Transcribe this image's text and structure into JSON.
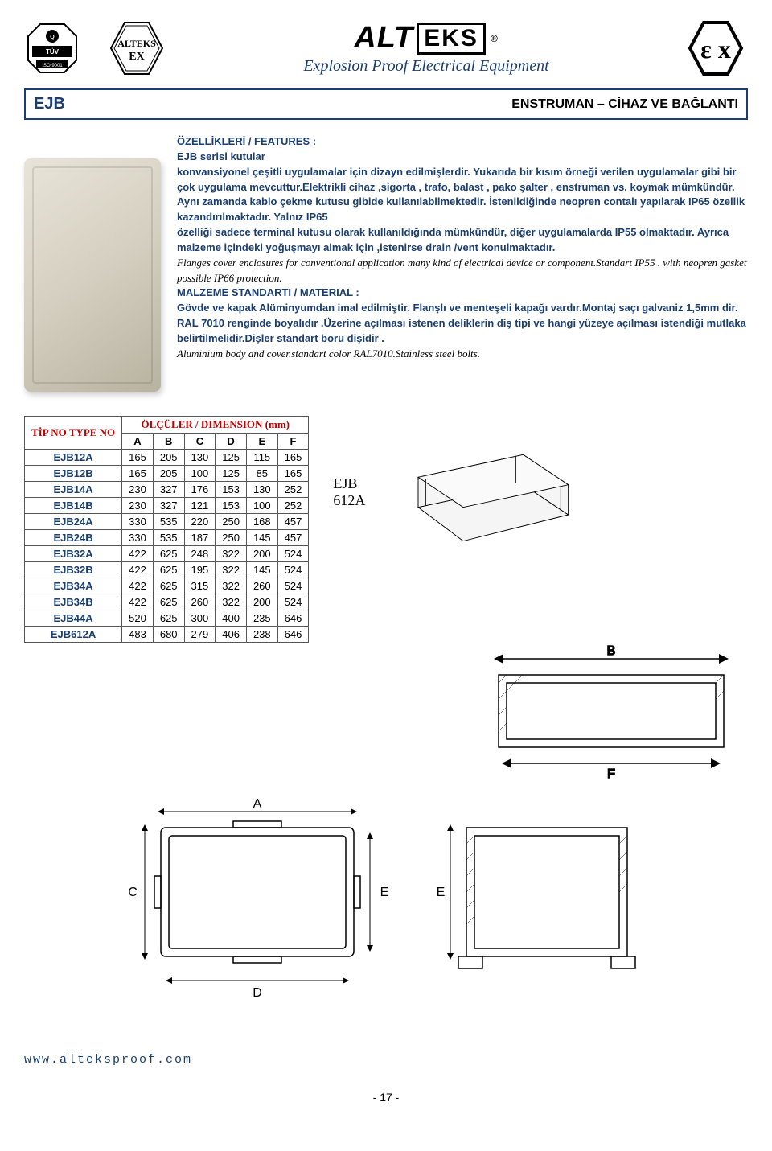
{
  "header": {
    "brand_alt": "ALT",
    "brand_eks": "EKS",
    "brand_r": "®",
    "subtitle": "Explosion Proof Electrical Equipment",
    "hex_line1": "ALTEKS",
    "hex_line2": "EX",
    "tuv_iso": "ISO 9001",
    "ex_label": "ε x"
  },
  "titlebar": {
    "left": "EJB",
    "right": "ENSTRUMAN – CİHAZ VE BAĞLANTI"
  },
  "desc": {
    "features_label": "ÖZELLİKLERİ / FEATURES :",
    "p1": "EJB serisi kutular",
    "p2": "konvansiyonel çeşitli uygulamalar için dizayn edilmişlerdir. Yukarıda bir kısım örneği verilen uygulamalar gibi bir çok uygulama mevcuttur.Elektrikli cihaz ,sigorta , trafo, balast , pako şalter , enstruman vs. koymak mümkündür. Aynı zamanda kablo çekme kutusu gibide kullanılabilmektedir. İstenildiğinde neopren contalı yapılarak IP65 özellik kazandırılmaktadır. Yalnız IP65",
    "p3": "özelliği sadece terminal kutusu olarak kullanıldığında mümkündür, diğer uygulamalarda IP55 olmaktadır. Ayrıca malzeme içindeki yoğuşmayı almak için ,istenirse ",
    "drain_vent": "drain /vent",
    "p3b": " konulmaktadır.",
    "italic1": "Flanges cover enclosures for conventional application many kind of electrical device or component.Standart IP55 . with neopren gasket possible IP66 protection.",
    "material_label": "MALZEME STANDARTI / MATERIAL :",
    "p4": "Gövde ve kapak Alüminyumdan imal edilmiştir. Flanşlı ve menteşeli kapağı vardır.Montaj saçı galvaniz 1,5mm dir. RAL 7010 renginde boyalıdır .Üzerine açılması istenen deliklerin diş tipi ve hangi yüzeye açılması istendiği mutlaka belirtilmelidir.Dişler standart boru dişidir .",
    "italic2": "Aluminium body and cover.standart color RAL7010.Stainless steel bolts."
  },
  "table": {
    "header_tipno": "TİP NO TYPE NO",
    "header_dim": "ÖLÇÜLER / DIMENSION (mm)",
    "cols": [
      "A",
      "B",
      "C",
      "D",
      "E",
      "F"
    ],
    "rows": [
      {
        "name": "EJB12A",
        "v": [
          "165",
          "205",
          "130",
          "125",
          "115",
          "165"
        ]
      },
      {
        "name": "EJB12B",
        "v": [
          "165",
          "205",
          "100",
          "125",
          "85",
          "165"
        ]
      },
      {
        "name": "EJB14A",
        "v": [
          "230",
          "327",
          "176",
          "153",
          "130",
          "252"
        ]
      },
      {
        "name": "EJB14B",
        "v": [
          "230",
          "327",
          "121",
          "153",
          "100",
          "252"
        ]
      },
      {
        "name": "EJB24A",
        "v": [
          "330",
          "535",
          "220",
          "250",
          "168",
          "457"
        ]
      },
      {
        "name": "EJB24B",
        "v": [
          "330",
          "535",
          "187",
          "250",
          "145",
          "457"
        ]
      },
      {
        "name": "EJB32A",
        "v": [
          "422",
          "625",
          "248",
          "322",
          "200",
          "524"
        ]
      },
      {
        "name": "EJB32B",
        "v": [
          "422",
          "625",
          "195",
          "322",
          "145",
          "524"
        ]
      },
      {
        "name": "EJB34A",
        "v": [
          "422",
          "625",
          "315",
          "322",
          "260",
          "524"
        ]
      },
      {
        "name": "EJB34B",
        "v": [
          "422",
          "625",
          "260",
          "322",
          "200",
          "524"
        ]
      },
      {
        "name": "EJB44A",
        "v": [
          "520",
          "625",
          "300",
          "400",
          "235",
          "646"
        ]
      },
      {
        "name": "EJB612A",
        "v": [
          "483",
          "680",
          "279",
          "406",
          "238",
          "646"
        ]
      }
    ]
  },
  "iso_label_1": "EJB",
  "iso_label_2": "612A",
  "drawings": {
    "labels": {
      "A": "A",
      "B": "B",
      "C": "C",
      "D": "D",
      "E": "E",
      "F": "F"
    }
  },
  "footer": {
    "url": "www.alteksproof.com",
    "page": "- 17 -"
  },
  "colors": {
    "brand_blue": "#1a3e72",
    "red": "#c00000",
    "black": "#000000"
  }
}
